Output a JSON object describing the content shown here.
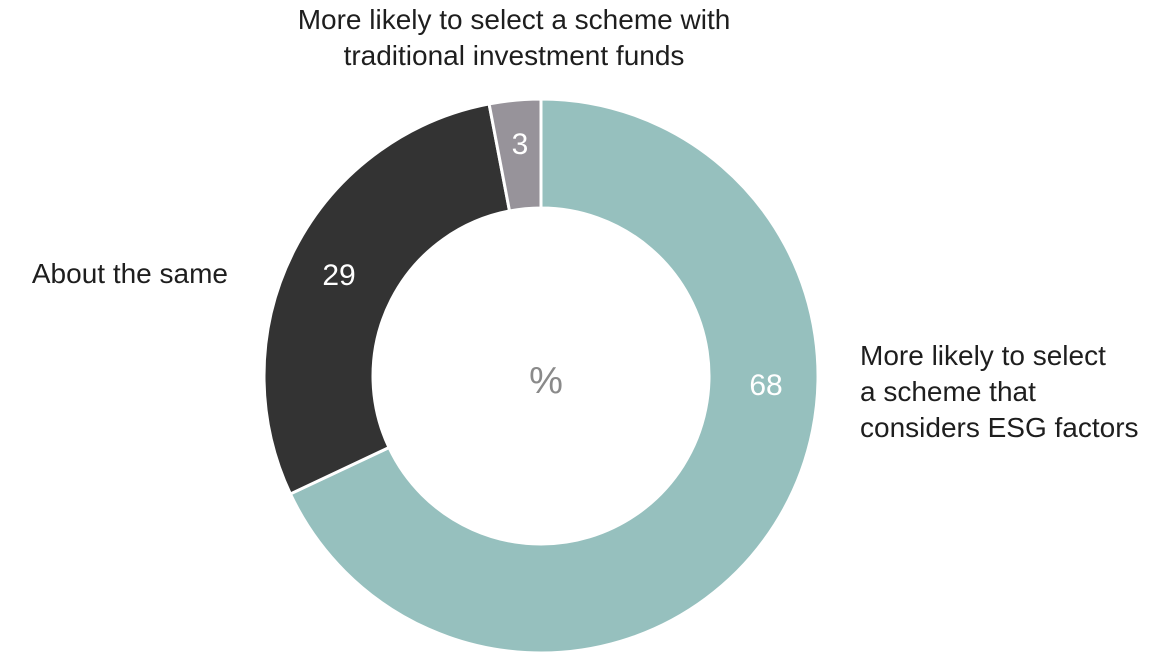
{
  "chart_data": {
    "type": "pie",
    "donut": true,
    "center_label": "%",
    "slices": [
      {
        "id": "esg",
        "value": 68,
        "label_lines": [
          "More likely to select",
          "a scheme that",
          "considers ESG factors"
        ],
        "color": "#96c0be",
        "value_color": "#ffffff"
      },
      {
        "id": "same",
        "value": 29,
        "label_lines": [
          "About the same"
        ],
        "color": "#333333",
        "value_color": "#ffffff"
      },
      {
        "id": "traditional",
        "value": 3,
        "label_lines": [
          "More likely to select a scheme with",
          "traditional investment funds"
        ],
        "color": "#97939a",
        "value_color": "#ffffff"
      }
    ],
    "start_position": "12 o'clock",
    "direction": "clockwise",
    "center_label_color": "#8a8a8a",
    "separator_color": "#ffffff"
  }
}
